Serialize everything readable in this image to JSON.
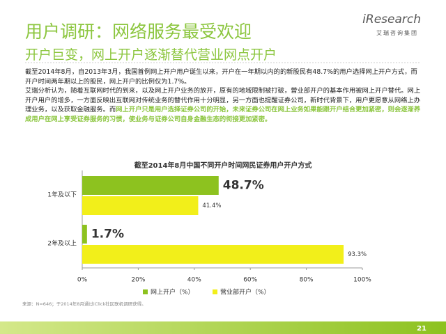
{
  "header": {
    "title": "用户调研：网络服务最受欢迎",
    "subtitle": "开户巨变，网上开户逐渐替代营业网点开户",
    "logo": "iResearch",
    "logo_sub": "艾瑞咨询集团"
  },
  "body": {
    "paragraph_1": "截至2014年8月，自2013年3月，我国首例网上开户用户诞生以来，开户在一年期以内的的新股民有48.7%的用户选择网上开户方式，而开户时间两年期以上的股民，网上开户的比例仅为1.7%。",
    "paragraph_2": "艾瑞分析认为，随着互联网时代的到来，以及网上开户业务的放开，原有的地域限制被打破，营业部开户的基本作用被网上开户替代。网上开户用户的增多，一方面反映出互联网对传统业务的替代作用十分明显，另一方面也提醒证券公司，新时代背景下，用户更愿意从网络上办理业务，以及获取金融服务。而",
    "paragraph_2_highlight": "网上开户只是用户选择证券公司的开始，未来证券公司在网上业务如果能跟开户结合更加紧密，则会逐渐养成用户在网上享受证券服务的习惯，使业务与证券公司自身金融生态的衔接更加紧密。"
  },
  "chart_data": {
    "type": "hbar",
    "title": "截至2014年8月中国不同开户时间网民证券用户开户方式",
    "categories": [
      "1年及以下",
      "2年及以上"
    ],
    "series": [
      {
        "name": "网上开户（%）",
        "color": "#8dc21f",
        "values": [
          48.7,
          1.7
        ],
        "value_labels": [
          "48.7%",
          "1.7%"
        ]
      },
      {
        "name": "营业部开户（%）",
        "color": "#f2ef1a",
        "values": [
          41.4,
          93.3
        ],
        "value_labels": [
          "41.4%",
          "93.3%"
        ]
      }
    ],
    "xlim": [
      0,
      100
    ],
    "xticks": [
      {
        "value": 0,
        "label": "0%"
      },
      {
        "value": 20,
        "label": "20%"
      },
      {
        "value": 40,
        "label": "40%"
      },
      {
        "value": 60,
        "label": "60%"
      },
      {
        "value": 80,
        "label": "80%"
      },
      {
        "value": 100,
        "label": "100%"
      }
    ],
    "legend": "bottom"
  },
  "footer": {
    "source": "来源：N=646；于2014年8月通过iClick社区联机调研获得。",
    "page": "21"
  }
}
